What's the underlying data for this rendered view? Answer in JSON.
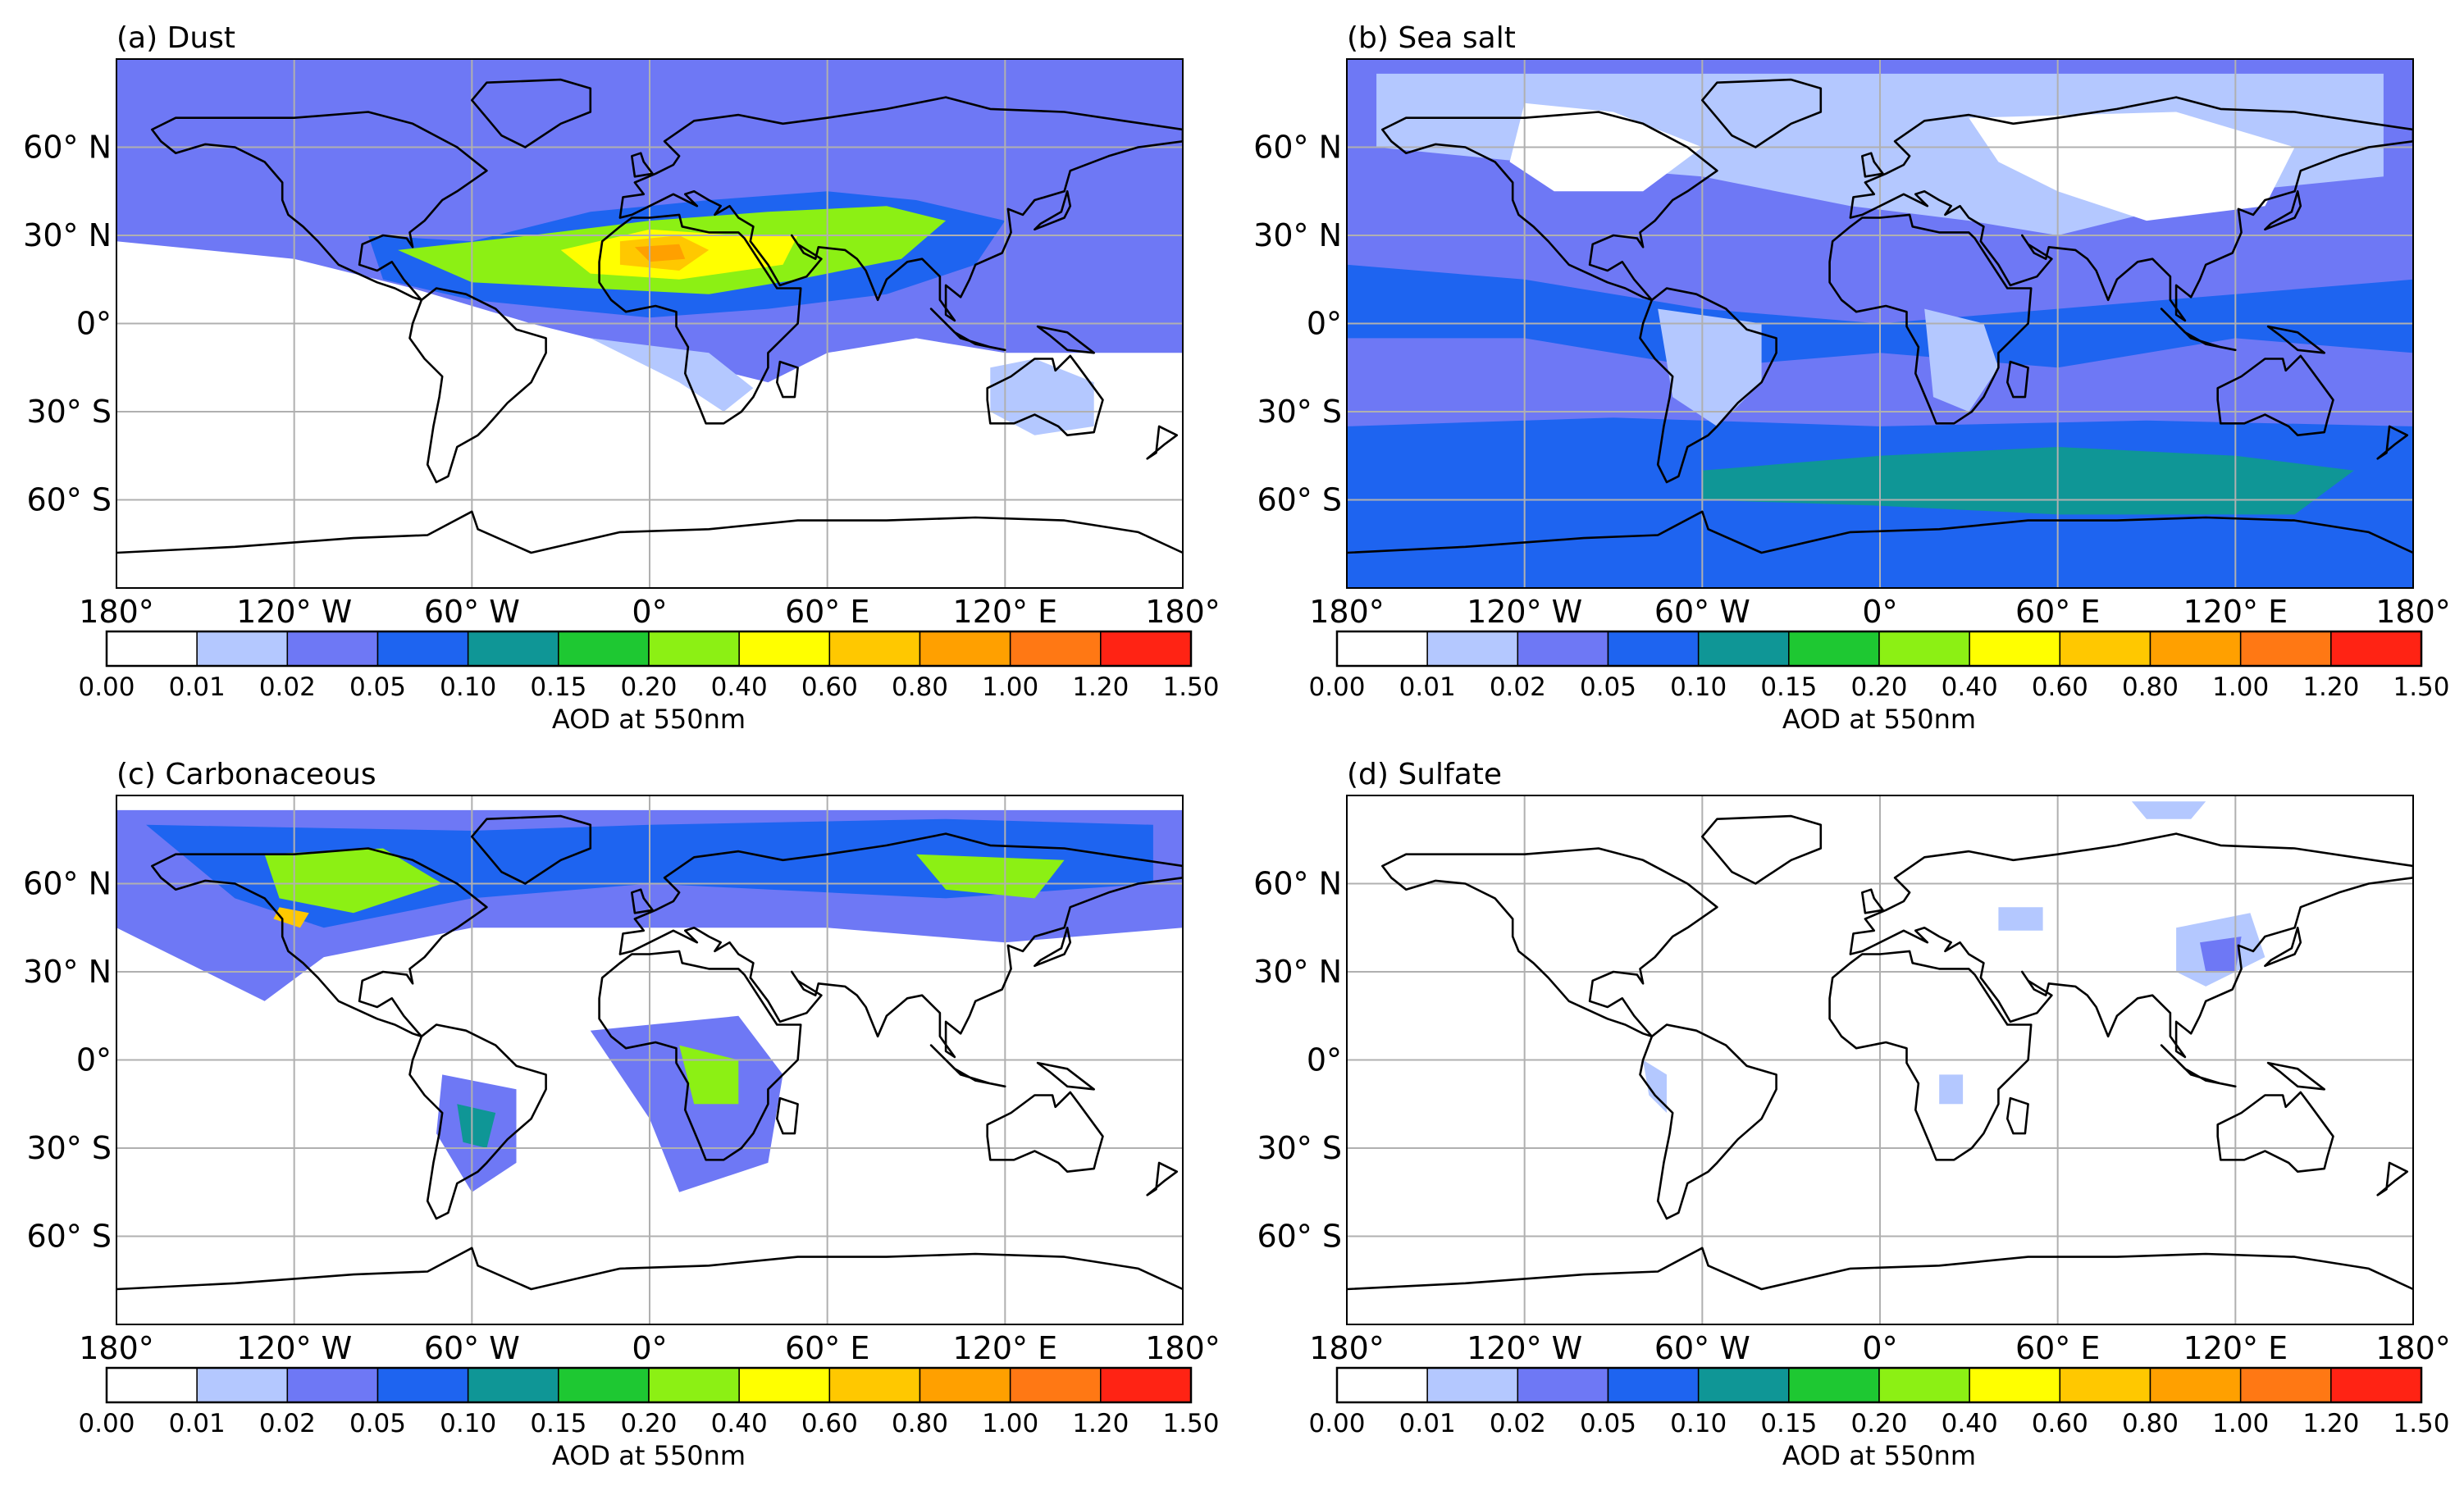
{
  "figure": {
    "colorbar": {
      "label": "AOD at 550nm",
      "levels": [
        "0.00",
        "0.01",
        "0.02",
        "0.05",
        "0.10",
        "0.15",
        "0.20",
        "0.40",
        "0.60",
        "0.80",
        "1.00",
        "1.20",
        "1.50"
      ],
      "colors": [
        "#ffffff",
        "#b4c8ff",
        "#6e78f5",
        "#1e64f0",
        "#0f9696",
        "#1ec832",
        "#8cf014",
        "#ffff00",
        "#ffc800",
        "#ffa000",
        "#ff7814",
        "#ff2314"
      ]
    },
    "axis": {
      "lon_ticks": [
        "180°",
        "120° W",
        "60° W",
        "0°",
        "60° E",
        "120° E",
        "180°"
      ],
      "lat_ticks": [
        "60° N",
        "30° N",
        "0°",
        "30° S",
        "60° S"
      ]
    },
    "panels": [
      {
        "title": "(a) Dust",
        "background_level": 2,
        "regions": [
          {
            "level": 0,
            "poly": [
              [
                -180,
                28
              ],
              [
                -120,
                22
              ],
              [
                -80,
                12
              ],
              [
                -40,
                0
              ],
              [
                -20,
                -5
              ],
              [
                0,
                -8
              ],
              [
                20,
                -15
              ],
              [
                40,
                -20
              ],
              [
                60,
                -10
              ],
              [
                90,
                -5
              ],
              [
                120,
                -10
              ],
              [
                150,
                -10
              ],
              [
                180,
                -10
              ],
              [
                180,
                -90
              ],
              [
                -180,
                -90
              ]
            ]
          },
          {
            "level": 1,
            "poly": [
              [
                -20,
                -5
              ],
              [
                10,
                -20
              ],
              [
                25,
                -30
              ],
              [
                35,
                -22
              ],
              [
                20,
                -10
              ]
            ]
          },
          {
            "level": 1,
            "poly": [
              [
                115,
                -15
              ],
              [
                130,
                -12
              ],
              [
                150,
                -20
              ],
              [
                150,
                -35
              ],
              [
                130,
                -38
              ],
              [
                115,
                -30
              ]
            ]
          },
          {
            "level": 3,
            "poly": [
              [
                -95,
                30
              ],
              [
                -60,
                28
              ],
              [
                -20,
                38
              ],
              [
                20,
                42
              ],
              [
                60,
                45
              ],
              [
                90,
                42
              ],
              [
                120,
                35
              ],
              [
                110,
                20
              ],
              [
                80,
                10
              ],
              [
                40,
                5
              ],
              [
                0,
                2
              ],
              [
                -30,
                5
              ],
              [
                -60,
                8
              ],
              [
                -90,
                15
              ]
            ]
          },
          {
            "level": 6,
            "poly": [
              [
                -85,
                25
              ],
              [
                -40,
                30
              ],
              [
                0,
                35
              ],
              [
                40,
                38
              ],
              [
                80,
                40
              ],
              [
                100,
                35
              ],
              [
                85,
                22
              ],
              [
                50,
                15
              ],
              [
                20,
                10
              ],
              [
                -20,
                12
              ],
              [
                -60,
                14
              ]
            ]
          },
          {
            "level": 7,
            "poly": [
              [
                -30,
                25
              ],
              [
                0,
                32
              ],
              [
                30,
                30
              ],
              [
                50,
                30
              ],
              [
                45,
                20
              ],
              [
                10,
                15
              ],
              [
                -20,
                17
              ]
            ]
          },
          {
            "level": 8,
            "poly": [
              [
                -10,
                28
              ],
              [
                10,
                30
              ],
              [
                20,
                25
              ],
              [
                10,
                18
              ],
              [
                -10,
                20
              ]
            ]
          },
          {
            "level": 9,
            "poly": [
              [
                -5,
                26
              ],
              [
                10,
                27
              ],
              [
                12,
                22
              ],
              [
                0,
                21
              ]
            ]
          }
        ]
      },
      {
        "title": "(b) Sea salt",
        "background_level": 2,
        "regions": [
          {
            "level": 1,
            "poly": [
              [
                -170,
                85
              ],
              [
                0,
                85
              ],
              [
                170,
                85
              ],
              [
                170,
                50
              ],
              [
                120,
                45
              ],
              [
                60,
                30
              ],
              [
                30,
                35
              ],
              [
                -10,
                40
              ],
              [
                -60,
                50
              ],
              [
                -120,
                55
              ],
              [
                -170,
                60
              ]
            ]
          },
          {
            "level": 0,
            "poly": [
              [
                -120,
                75
              ],
              [
                -90,
                72
              ],
              [
                -60,
                60
              ],
              [
                -80,
                45
              ],
              [
                -110,
                45
              ],
              [
                -125,
                55
              ]
            ]
          },
          {
            "level": 0,
            "poly": [
              [
                30,
                70
              ],
              [
                100,
                72
              ],
              [
                140,
                60
              ],
              [
                130,
                40
              ],
              [
                90,
                35
              ],
              [
                60,
                45
              ],
              [
                40,
                55
              ]
            ]
          },
          {
            "level": 3,
            "poly": [
              [
                -180,
                20
              ],
              [
                -120,
                15
              ],
              [
                -60,
                5
              ],
              [
                0,
                0
              ],
              [
                60,
                5
              ],
              [
                120,
                10
              ],
              [
                180,
                15
              ],
              [
                180,
                -10
              ],
              [
                120,
                -5
              ],
              [
                60,
                -15
              ],
              [
                0,
                -10
              ],
              [
                -60,
                -15
              ],
              [
                -120,
                -5
              ],
              [
                -180,
                -5
              ]
            ]
          },
          {
            "level": 3,
            "poly": [
              [
                -180,
                -35
              ],
              [
                -90,
                -32
              ],
              [
                0,
                -35
              ],
              [
                90,
                -33
              ],
              [
                180,
                -35
              ],
              [
                180,
                -90
              ],
              [
                -180,
                -90
              ]
            ]
          },
          {
            "level": 4,
            "poly": [
              [
                -60,
                -50
              ],
              [
                0,
                -45
              ],
              [
                60,
                -42
              ],
              [
                120,
                -45
              ],
              [
                160,
                -50
              ],
              [
                140,
                -65
              ],
              [
                60,
                -65
              ],
              [
                0,
                -62
              ],
              [
                -60,
                -60
              ]
            ]
          },
          {
            "level": 1,
            "poly": [
              [
                -75,
                5
              ],
              [
                -40,
                0
              ],
              [
                -40,
                -20
              ],
              [
                -55,
                -35
              ],
              [
                -70,
                -25
              ]
            ]
          },
          {
            "level": 1,
            "poly": [
              [
                15,
                5
              ],
              [
                35,
                0
              ],
              [
                40,
                -15
              ],
              [
                30,
                -30
              ],
              [
                18,
                -25
              ]
            ]
          }
        ]
      },
      {
        "title": "(c) Carbonaceous",
        "background_level": 0,
        "regions": [
          {
            "level": 2,
            "poly": [
              [
                -180,
                85
              ],
              [
                180,
                85
              ],
              [
                180,
                45
              ],
              [
                120,
                40
              ],
              [
                60,
                45
              ],
              [
                0,
                45
              ],
              [
                -60,
                45
              ],
              [
                -110,
                35
              ],
              [
                -130,
                20
              ],
              [
                -180,
                45
              ]
            ]
          },
          {
            "level": 3,
            "poly": [
              [
                -170,
                80
              ],
              [
                -60,
                78
              ],
              [
                0,
                80
              ],
              [
                100,
                82
              ],
              [
                170,
                80
              ],
              [
                170,
                60
              ],
              [
                100,
                55
              ],
              [
                0,
                60
              ],
              [
                -60,
                55
              ],
              [
                -110,
                45
              ],
              [
                -140,
                55
              ]
            ]
          },
          {
            "level": 6,
            "poly": [
              [
                -130,
                70
              ],
              [
                -90,
                72
              ],
              [
                -70,
                60
              ],
              [
                -100,
                50
              ],
              [
                -125,
                55
              ]
            ]
          },
          {
            "level": 6,
            "poly": [
              [
                90,
                70
              ],
              [
                140,
                68
              ],
              [
                130,
                55
              ],
              [
                100,
                58
              ]
            ]
          },
          {
            "level": 8,
            "poly": [
              [
                -125,
                52
              ],
              [
                -115,
                50
              ],
              [
                -118,
                45
              ],
              [
                -127,
                48
              ]
            ]
          },
          {
            "level": 2,
            "poly": [
              [
                -70,
                -5
              ],
              [
                -45,
                -10
              ],
              [
                -45,
                -35
              ],
              [
                -60,
                -45
              ],
              [
                -72,
                -25
              ]
            ]
          },
          {
            "level": 4,
            "poly": [
              [
                -65,
                -15
              ],
              [
                -52,
                -18
              ],
              [
                -55,
                -30
              ],
              [
                -63,
                -28
              ]
            ]
          },
          {
            "level": 2,
            "poly": [
              [
                -20,
                10
              ],
              [
                30,
                15
              ],
              [
                45,
                -5
              ],
              [
                40,
                -35
              ],
              [
                10,
                -45
              ],
              [
                0,
                -20
              ]
            ]
          },
          {
            "level": 6,
            "poly": [
              [
                10,
                5
              ],
              [
                30,
                0
              ],
              [
                30,
                -15
              ],
              [
                15,
                -15
              ]
            ]
          }
        ]
      },
      {
        "title": "(d) Sulfate",
        "background_level": 0,
        "regions": [
          {
            "level": 1,
            "poly": [
              [
                100,
                45
              ],
              [
                125,
                50
              ],
              [
                130,
                35
              ],
              [
                110,
                25
              ],
              [
                100,
                30
              ]
            ]
          },
          {
            "level": 2,
            "poly": [
              [
                108,
                40
              ],
              [
                122,
                42
              ],
              [
                120,
                30
              ],
              [
                110,
                30
              ]
            ]
          },
          {
            "level": 1,
            "poly": [
              [
                -80,
                0
              ],
              [
                -72,
                -5
              ],
              [
                -72,
                -18
              ],
              [
                -78,
                -12
              ]
            ]
          },
          {
            "level": 1,
            "poly": [
              [
                20,
                -5
              ],
              [
                28,
                -5
              ],
              [
                28,
                -15
              ],
              [
                20,
                -15
              ]
            ]
          },
          {
            "level": 1,
            "poly": [
              [
                40,
                52
              ],
              [
                55,
                52
              ],
              [
                55,
                44
              ],
              [
                40,
                44
              ]
            ]
          },
          {
            "level": 1,
            "poly": [
              [
                85,
                88
              ],
              [
                110,
                88
              ],
              [
                105,
                82
              ],
              [
                90,
                82
              ]
            ]
          }
        ]
      }
    ]
  }
}
